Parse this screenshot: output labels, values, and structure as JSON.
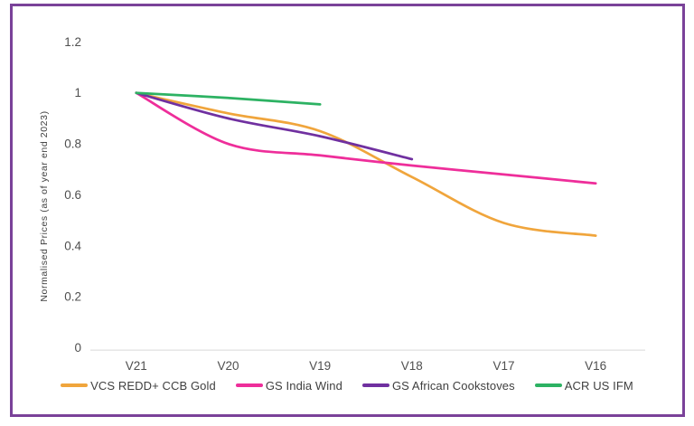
{
  "frame": {
    "border_color": "#7A4299"
  },
  "chart_data": {
    "type": "line",
    "title": "",
    "xlabel": "",
    "ylabel": "Normalised Prices (as of year end 2023)",
    "categories": [
      "V21",
      "V20",
      "V19",
      "V18",
      "V17",
      "V16"
    ],
    "y_ticks": [
      0,
      0.2,
      0.4,
      0.6,
      0.8,
      1,
      1.2
    ],
    "y_tick_labels": [
      "0",
      "0.2",
      "0.4",
      "0.6",
      "0.8",
      "1",
      "1.2"
    ],
    "ylim": [
      0,
      1.2
    ],
    "grid": false,
    "legend_position": "bottom",
    "axis_line_color": "#D9D9D9",
    "tick_text_color": "#4f4f4f",
    "series": [
      {
        "name": "VCS REDD+ CCB Gold",
        "color": "#F0A53C",
        "values": [
          1,
          0.92,
          0.85,
          0.67,
          0.49,
          0.44
        ]
      },
      {
        "name": "GS India Wind",
        "color": "#EE2E9A",
        "values": [
          1,
          0.8,
          0.755,
          0.715,
          0.68,
          0.645
        ]
      },
      {
        "name": "GS African Cookstoves",
        "color": "#7030A0",
        "values": [
          1,
          0.9,
          0.83,
          0.74
        ]
      },
      {
        "name": "ACR US IFM",
        "color": "#2DB263",
        "values": [
          1,
          0.98,
          0.955
        ]
      }
    ]
  }
}
